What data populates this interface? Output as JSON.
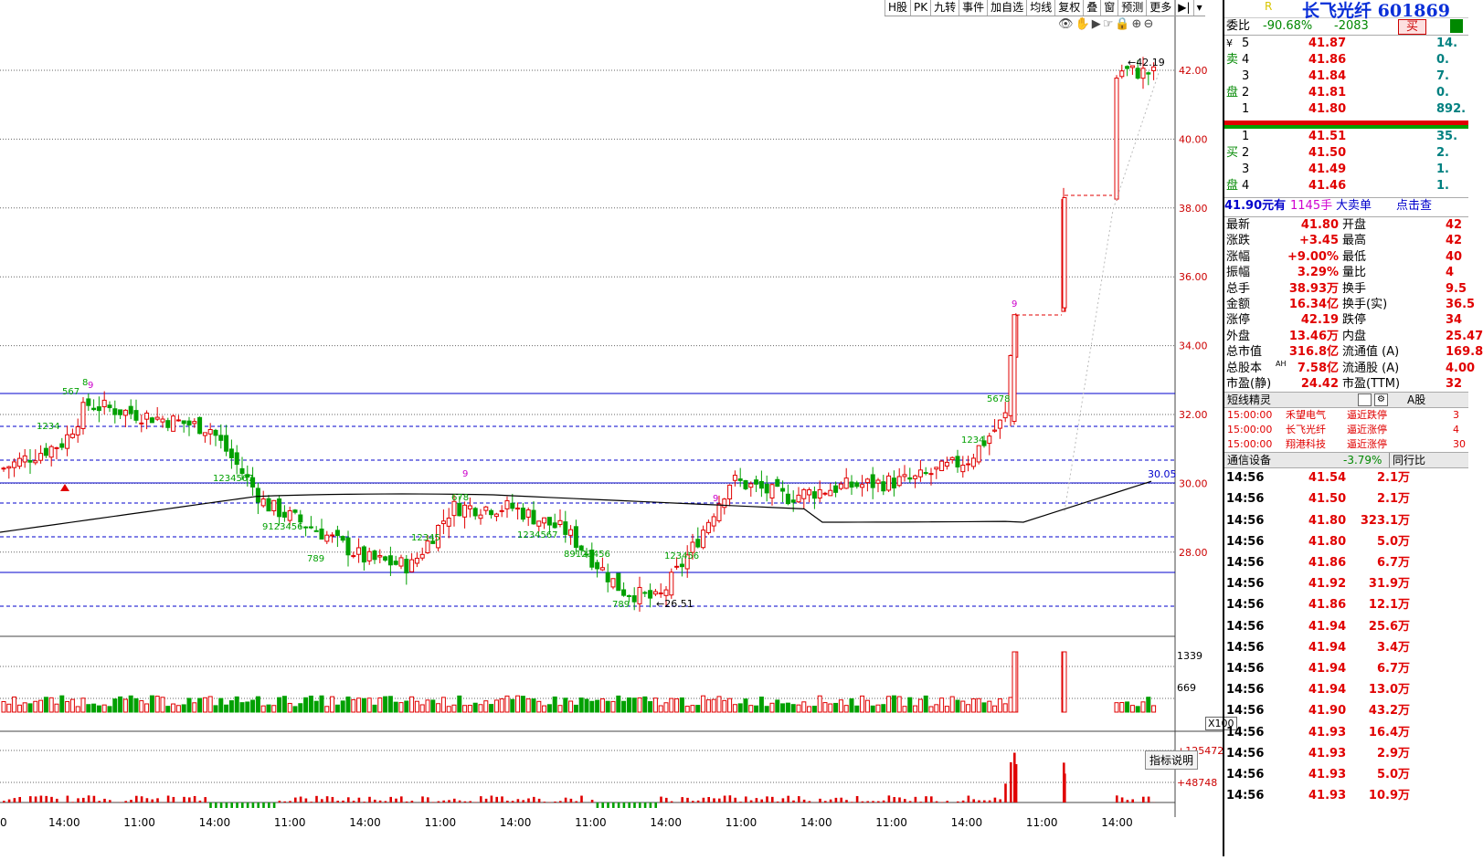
{
  "toolbar": [
    "H股",
    "PK",
    "九转",
    "事件",
    "加自选",
    "均线",
    "复权",
    "叠",
    "窗",
    "预测",
    "更多",
    "▶|",
    "▾"
  ],
  "subtool_icons": [
    "eye-icon",
    "hand-icon",
    "play-icon",
    "pointer-icon",
    "lock-icon",
    "zoom-in-icon",
    "zoom-out-icon"
  ],
  "subtool_glyphs": "👁✋▶☞🔒⊕⊖",
  "chart": {
    "price_labels": [
      "42.00",
      "40.00",
      "38.00",
      "36.00",
      "34.00",
      "32.00",
      "30.00",
      "28.00"
    ],
    "vol_labels": [
      "1339",
      "669"
    ],
    "vol_unit": "X100",
    "ind_labels": [
      "+125472",
      "+48748"
    ],
    "ind_button": "指标说明",
    "time_labels": [
      "0",
      "14:00",
      "11:00",
      "14:00",
      "11:00",
      "14:00",
      "11:00",
      "14:00",
      "11:00",
      "14:00",
      "11:00",
      "14:00",
      "11:00",
      "14:00",
      "11:00",
      "14:00"
    ],
    "high_label": "42.19",
    "low_label": "26.51",
    "ma_label": "30.05",
    "colors": {
      "up": "#e00000",
      "down": "#00a000",
      "ma": "#000000",
      "grid": "#666666",
      "hline": "#0000cc"
    }
  },
  "header": {
    "r_mark": "R",
    "name": "长飞光纤 601869"
  },
  "weibi": {
    "label": "委比",
    "pct": "-90.68%",
    "diff": "-2083",
    "btn": "买"
  },
  "asks": {
    "label": "卖盘",
    "yen": "¥",
    "rows": [
      {
        "lv": "5",
        "price": "41.87",
        "vol": "14."
      },
      {
        "lv": "4",
        "price": "41.86",
        "vol": "0."
      },
      {
        "lv": "3",
        "price": "41.84",
        "vol": "7."
      },
      {
        "lv": "2",
        "price": "41.81",
        "vol": "0."
      },
      {
        "lv": "1",
        "price": "41.80",
        "vol": "892."
      }
    ]
  },
  "bids": {
    "label": "买盘",
    "rows": [
      {
        "lv": "1",
        "price": "41.51",
        "vol": "35."
      },
      {
        "lv": "2",
        "price": "41.50",
        "vol": "2."
      },
      {
        "lv": "3",
        "price": "41.49",
        "vol": "1."
      },
      {
        "lv": "4",
        "price": "41.46",
        "vol": "1."
      }
    ]
  },
  "bigorder": {
    "price": "41.90元有",
    "qty": "1145手",
    "type": "大卖单",
    "action": "点击查"
  },
  "stats": [
    {
      "l1": "最新",
      "v1": "41.80",
      "l2": "开盘",
      "v2": "42"
    },
    {
      "l1": "涨跌",
      "v1": "+3.45",
      "l2": "最高",
      "v2": "42"
    },
    {
      "l1": "涨幅",
      "v1": "+9.00%",
      "l2": "最低",
      "v2": "40"
    },
    {
      "l1": "振幅",
      "v1": "3.29%",
      "l2": "量比",
      "v2": "4"
    },
    {
      "l1": "总手",
      "v1": "38.93万",
      "l2": "换手",
      "v2": "9.5"
    },
    {
      "l1": "金额",
      "v1": "16.34亿",
      "l2": "换手(实)",
      "v2": "36.5"
    },
    {
      "l1": "涨停",
      "v1": "42.19",
      "l2": "跌停",
      "v2": "34"
    },
    {
      "l1": "外盘",
      "v1": "13.46万",
      "l2": "内盘",
      "v2": "25.47"
    },
    {
      "l1": "总市值",
      "v1": "316.8亿",
      "l2": "流通值 (A)",
      "v2": "169.8"
    },
    {
      "l1": "总股本",
      "v1": "7.58亿",
      "l2": "流通股 (A)",
      "v2": "4.00"
    },
    {
      "l1": "市盈(静)",
      "v1": "24.42",
      "l2": "市盈(TTM)",
      "v2": "32"
    }
  ],
  "ah_tag": "AH",
  "short": {
    "title": "短线精灵",
    "tab": "A股",
    "rows": [
      {
        "t": "15:00:00",
        "name": "禾望电气",
        "ev": "逼近跌停",
        "v": "3"
      },
      {
        "t": "15:00:00",
        "name": "长飞光纤",
        "ev": "逼近涨停",
        "v": "4"
      },
      {
        "t": "15:00:00",
        "name": "翔港科技",
        "ev": "逼近涨停",
        "v": "30"
      }
    ]
  },
  "sector": {
    "name": "通信设备",
    "pct": "-3.79%",
    "btn": "同行比"
  },
  "ticks": [
    {
      "t": "14:56",
      "p": "41.54",
      "v": "2.1万"
    },
    {
      "t": "14:56",
      "p": "41.50",
      "v": "2.1万"
    },
    {
      "t": "14:56",
      "p": "41.80",
      "v": "323.1万"
    },
    {
      "t": "14:56",
      "p": "41.80",
      "v": "5.0万"
    },
    {
      "t": "14:56",
      "p": "41.86",
      "v": "6.7万"
    },
    {
      "t": "14:56",
      "p": "41.92",
      "v": "31.9万"
    },
    {
      "t": "14:56",
      "p": "41.86",
      "v": "12.1万"
    },
    {
      "t": "14:56",
      "p": "41.94",
      "v": "25.6万"
    },
    {
      "t": "14:56",
      "p": "41.94",
      "v": "3.4万"
    },
    {
      "t": "14:56",
      "p": "41.94",
      "v": "6.7万"
    },
    {
      "t": "14:56",
      "p": "41.94",
      "v": "13.0万"
    },
    {
      "t": "14:56",
      "p": "41.90",
      "v": "43.2万"
    },
    {
      "t": "14:56",
      "p": "41.93",
      "v": "16.4万"
    },
    {
      "t": "14:56",
      "p": "41.93",
      "v": "2.9万"
    },
    {
      "t": "14:56",
      "p": "41.93",
      "v": "5.0万"
    },
    {
      "t": "14:56",
      "p": "41.93",
      "v": "10.9万"
    }
  ]
}
